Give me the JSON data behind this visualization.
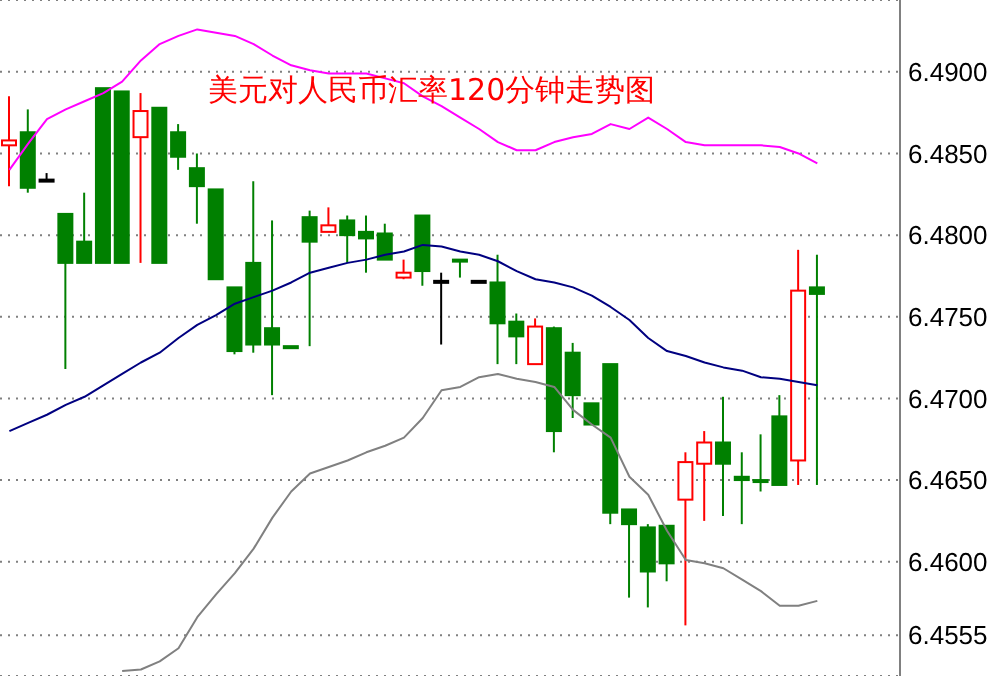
{
  "chart_data": {
    "type": "candlestick",
    "title": "美元对人民币汇率120分钟走势图",
    "categories": [
      null,
      null,
      null,
      null,
      null,
      null,
      null,
      null,
      null,
      null,
      null,
      null,
      null,
      null,
      null,
      null,
      null,
      null,
      null,
      null,
      null,
      null,
      null,
      null,
      null,
      null,
      null,
      null,
      null,
      null,
      null,
      null,
      null,
      null,
      null,
      null,
      null,
      null,
      null,
      null,
      null,
      null,
      null,
      null
    ],
    "ohlc": [
      [
        6.4855,
        6.4885,
        6.483,
        6.4858
      ],
      [
        6.4863,
        6.4877,
        6.4826,
        6.4829
      ],
      [
        6.4834,
        6.4838,
        6.4834,
        6.4834
      ],
      [
        6.4813,
        6.4813,
        6.4718,
        6.4783
      ],
      [
        6.4796,
        6.4826,
        6.4783,
        6.4783
      ],
      [
        6.489,
        6.489,
        6.4783,
        6.4783
      ],
      [
        6.4888,
        6.4888,
        6.4783,
        6.4783
      ],
      [
        6.486,
        6.4887,
        6.4783,
        6.4876
      ],
      [
        6.4878,
        6.4878,
        6.4783,
        6.4783
      ],
      [
        6.4863,
        6.4868,
        6.484,
        6.4848
      ],
      [
        6.4841,
        6.485,
        6.4807,
        6.483
      ],
      [
        6.4828,
        6.4828,
        6.4773,
        6.4773
      ],
      [
        6.4768,
        6.4768,
        6.4727,
        6.4729
      ],
      [
        6.4783,
        6.4833,
        6.4728,
        6.4733
      ],
      [
        6.4743,
        6.4809,
        6.4702,
        6.4733
      ],
      [
        6.4732,
        6.4732,
        6.4732,
        6.4732
      ],
      [
        6.4811,
        6.4815,
        6.4732,
        6.4796
      ],
      [
        6.4802,
        6.4817,
        6.4802,
        6.4806
      ],
      [
        6.4809,
        6.4812,
        6.4783,
        6.48
      ],
      [
        6.4802,
        6.4812,
        6.4777,
        6.4798
      ],
      [
        6.4801,
        6.4807,
        6.4785,
        6.4785
      ],
      [
        6.4774,
        6.4785,
        6.4773,
        6.4777
      ],
      [
        6.4812,
        6.4812,
        6.4769,
        6.4778
      ],
      [
        6.4772,
        6.4777,
        6.4733,
        6.4772
      ],
      [
        6.4785,
        6.4785,
        6.4774,
        6.4785
      ],
      [
        6.4772,
        6.4772,
        6.4772,
        6.4772
      ],
      [
        6.4771,
        6.4788,
        6.4721,
        6.4746
      ],
      [
        6.4747,
        6.4752,
        6.4721,
        6.4738
      ],
      [
        6.4721,
        6.4749,
        6.4721,
        6.4744
      ],
      [
        6.4743,
        6.4744,
        6.4667,
        6.468
      ],
      [
        6.4728,
        6.4734,
        6.4688,
        6.4702
      ],
      [
        6.4697,
        6.4697,
        6.4684,
        6.4684
      ],
      [
        6.4721,
        6.4721,
        6.4623,
        6.463
      ],
      [
        6.4632,
        6.4632,
        6.4578,
        6.4623
      ],
      [
        6.4621,
        6.4623,
        6.4572,
        6.4594
      ],
      [
        6.4622,
        6.4622,
        6.4588,
        6.4599
      ],
      [
        6.4638,
        6.4667,
        6.4561,
        6.4661
      ],
      [
        6.466,
        6.468,
        6.4625,
        6.4673
      ],
      [
        6.4673,
        6.4701,
        6.4628,
        6.466
      ],
      [
        6.4652,
        6.4667,
        6.4623,
        6.465
      ],
      [
        6.465,
        6.4678,
        6.4643,
        6.4649
      ],
      [
        6.4689,
        6.4702,
        6.4647,
        6.4647
      ],
      [
        6.4662,
        6.4791,
        6.4647,
        6.4766
      ],
      [
        6.4768,
        6.4788,
        6.4647,
        6.4764
      ]
    ],
    "colors": [
      "#ff0000",
      "#008000",
      "#000000",
      "#008000",
      "#008000",
      "#008000",
      "#008000",
      "#ff0000",
      "#008000",
      "#008000",
      "#008000",
      "#008000",
      "#008000",
      "#008000",
      "#008000",
      "#008000",
      "#008000",
      "#ff0000",
      "#008000",
      "#008000",
      "#008000",
      "#ff0000",
      "#008000",
      "#000000",
      "#008000",
      "#000000",
      "#008000",
      "#008000",
      "#ff0000",
      "#008000",
      "#008000",
      "#008000",
      "#008000",
      "#008000",
      "#008000",
      "#008000",
      "#ff0000",
      "#ff0000",
      "#008000",
      "#008000",
      "#008000",
      "#008000",
      "#ff0000",
      "#008000"
    ],
    "series": [
      {
        "type": "line",
        "color": "#ff00ff",
        "values": [
          6.484,
          6.4856,
          6.4871,
          6.4877,
          6.4882,
          6.4887,
          6.4894,
          6.4907,
          6.4917,
          6.4922,
          6.4926,
          6.4924,
          6.4922,
          6.4917,
          6.491,
          6.4904,
          6.4901,
          6.4899,
          6.4899,
          6.4899,
          6.4896,
          6.4893,
          6.4885,
          6.4879,
          6.4872,
          6.4865,
          6.4857,
          6.4852,
          6.4852,
          6.4857,
          6.486,
          6.4862,
          6.4868,
          6.4865,
          6.4872,
          6.4865,
          6.4857,
          6.4855,
          6.4855,
          6.4855,
          6.4855,
          6.4854,
          6.485,
          6.4844
        ]
      },
      {
        "type": "line",
        "color": "#000080",
        "values": [
          6.468,
          6.4685,
          6.469,
          6.4696,
          6.4701,
          6.4708,
          6.4715,
          6.4722,
          6.4728,
          6.4737,
          6.4745,
          6.4751,
          6.4758,
          6.4762,
          6.4766,
          6.4771,
          6.4777,
          6.478,
          6.4783,
          6.4785,
          6.4788,
          6.479,
          6.4794,
          6.4793,
          6.479,
          6.4788,
          6.4784,
          6.4778,
          6.4773,
          6.4771,
          6.4768,
          6.4763,
          6.4756,
          6.4748,
          6.4737,
          6.4729,
          6.4726,
          6.4722,
          6.4719,
          6.4717,
          6.4713,
          6.4712,
          6.471,
          6.4708
        ]
      },
      {
        "type": "line",
        "color": "#808080",
        "values": [
          null,
          null,
          null,
          null,
          null,
          null,
          6.4533,
          6.4534,
          6.4539,
          6.4547,
          6.4566,
          6.458,
          6.4593,
          6.4608,
          6.4627,
          6.4643,
          6.4654,
          6.4658,
          6.4662,
          6.4667,
          6.4671,
          6.4676,
          6.4688,
          6.4705,
          6.4707,
          6.4713,
          6.4715,
          6.4712,
          6.471,
          6.4707,
          6.4693,
          6.4684,
          6.4676,
          6.4652,
          6.4641,
          6.4619,
          6.4601,
          6.4599,
          6.4596,
          6.4589,
          6.4582,
          6.4573,
          6.4573,
          6.4576
        ]
      }
    ],
    "ylim": [
      6.453,
      6.4944
    ],
    "yticks": [
      {
        "value": 6.49,
        "label": "6.4900"
      },
      {
        "value": 6.485,
        "label": "6.4850"
      },
      {
        "value": 6.48,
        "label": "6.4800"
      },
      {
        "value": 6.475,
        "label": "6.4750"
      },
      {
        "value": 6.47,
        "label": "6.4700"
      },
      {
        "value": 6.465,
        "label": "6.4650"
      },
      {
        "value": 6.46,
        "label": "6.4600"
      },
      {
        "value": 6.4555,
        "label": "6.4555"
      }
    ],
    "grid": "y",
    "tick_labels": "y"
  }
}
